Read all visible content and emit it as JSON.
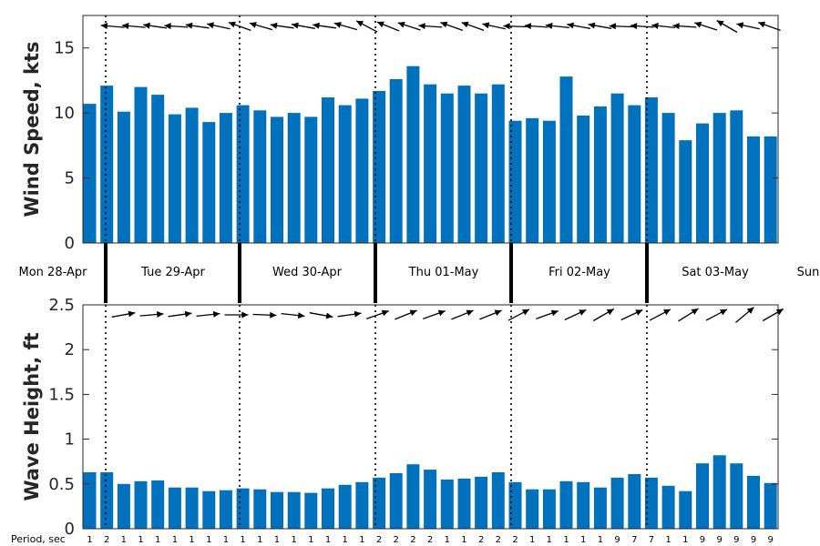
{
  "chart_data": [
    {
      "type": "bar",
      "ylabel": "Wind Speed, kts",
      "ylim": [
        0,
        17.5
      ],
      "yticks": [
        0,
        5,
        10,
        15
      ],
      "bar_color": "#0072BD",
      "values": [
        10.7,
        12.1,
        10.1,
        12.0,
        11.4,
        9.9,
        10.4,
        9.3,
        10.0,
        10.6,
        10.2,
        9.7,
        10.0,
        9.7,
        11.2,
        10.6,
        11.1,
        11.7,
        12.6,
        13.6,
        12.2,
        11.5,
        12.1,
        11.5,
        12.2,
        9.4,
        9.6,
        9.4,
        12.8,
        9.8,
        10.5,
        11.5,
        10.6,
        11.2,
        10.0,
        7.9,
        9.2,
        10.0,
        10.2,
        8.2,
        8.2
      ],
      "direction_arrows_deg": [
        175,
        175,
        172,
        176,
        172,
        168,
        160,
        164,
        172,
        170,
        172,
        164,
        152,
        158,
        162,
        176,
        160,
        160,
        168,
        178,
        176,
        174,
        170,
        170,
        178,
        176,
        174,
        176,
        162,
        150,
        168,
        160
      ]
    },
    {
      "type": "bar",
      "ylabel": "Wave Height, ft",
      "ylim": [
        0,
        2.5
      ],
      "yticks": [
        "0",
        "0.5",
        "1",
        "1.5",
        "2",
        "2.5"
      ],
      "bar_color": "#0072BD",
      "values": [
        0.63,
        0.63,
        0.5,
        0.53,
        0.54,
        0.46,
        0.46,
        0.42,
        0.43,
        0.45,
        0.44,
        0.41,
        0.41,
        0.4,
        0.45,
        0.49,
        0.52,
        0.57,
        0.62,
        0.72,
        0.66,
        0.55,
        0.56,
        0.58,
        0.63,
        0.52,
        0.44,
        0.44,
        0.53,
        0.52,
        0.46,
        0.57,
        0.61,
        0.57,
        0.48,
        0.42,
        0.73,
        0.82,
        0.73,
        0.59,
        0.51
      ],
      "direction_arrows_deg": [
        10,
        5,
        8,
        6,
        0,
        -2,
        -6,
        -10,
        8,
        20,
        22,
        20,
        22,
        22,
        28,
        20,
        25,
        30,
        25,
        28,
        32,
        28,
        40,
        30
      ]
    }
  ],
  "days": [
    "Mon 28-Apr",
    "Tue 29-Apr",
    "Wed 30-Apr",
    "Thu 01-May",
    "Fri 02-May",
    "Sat 03-May",
    "Sun"
  ],
  "period": {
    "label": "Period, sec",
    "values": [
      "1",
      "2",
      "1",
      "1",
      "1",
      "1",
      "1",
      "1",
      "1",
      "1",
      "1",
      "1",
      "1",
      "1",
      "1",
      "1",
      "1",
      "2",
      "2",
      "2",
      "2",
      "1",
      "1",
      "2",
      "2",
      "2",
      "1",
      "1",
      "1",
      "1",
      "1",
      "9",
      "7",
      "7",
      "1",
      "1",
      "9",
      "9",
      "9",
      "9",
      "9"
    ]
  }
}
